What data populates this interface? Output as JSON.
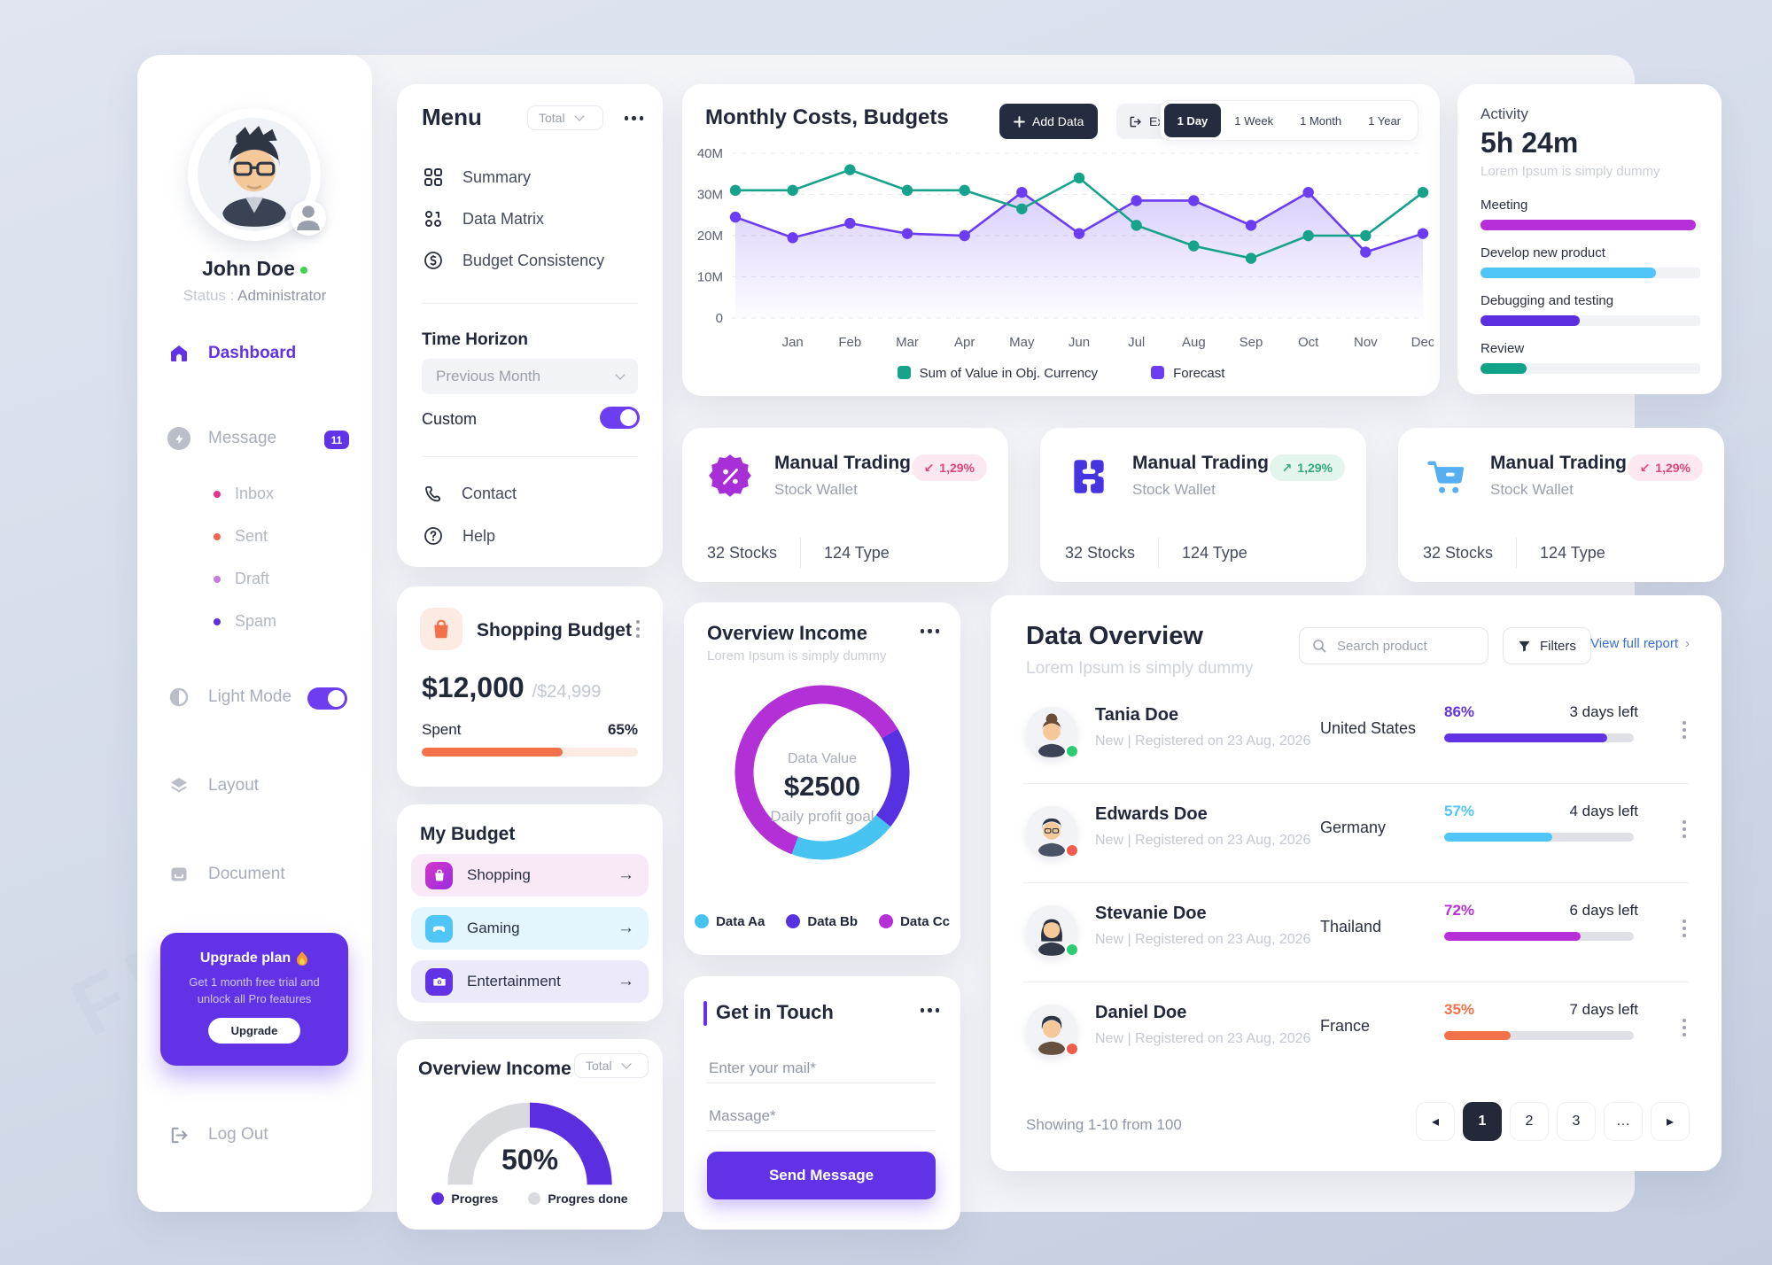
{
  "watermark": "FREEPIK",
  "sidebar": {
    "user": {
      "name": "John Doe",
      "status_label": "Status :",
      "status_value": "Administrator"
    },
    "dashboard": "Dashboard",
    "message": "Message",
    "message_badge": "11",
    "folders": [
      {
        "label": "Inbox",
        "color": "#e8338c"
      },
      {
        "label": "Sent",
        "color": "#f2624d"
      },
      {
        "label": "Draft",
        "color": "#c77be0"
      },
      {
        "label": "Spam",
        "color": "#5b2ee0"
      }
    ],
    "light_mode": "Light Mode",
    "layout": "Layout",
    "document": "Document",
    "upgrade": {
      "title": "Upgrade plan",
      "line1": "Get 1 month free trial and",
      "line2": "unlock all Pro features",
      "button": "Upgrade"
    },
    "logout": "Log Out"
  },
  "menu": {
    "title": "Menu",
    "scope_select": "Total",
    "items": [
      "Summary",
      "Data Matrix",
      "Budget Consistency"
    ],
    "time_horizon": "Time Horizon",
    "time_select": "Previous Month",
    "custom": "Custom",
    "contact": "Contact",
    "help": "Help"
  },
  "shopping_budget": {
    "title": "Shopping Budget",
    "amount": "$12,000",
    "limit": "/$24,999",
    "spent_label": "Spent",
    "percent_label": "65%",
    "percent": 65,
    "color": "#f2714b"
  },
  "my_budget": {
    "title": "My Budget",
    "items": [
      {
        "label": "Shopping"
      },
      {
        "label": "Gaming"
      },
      {
        "label": "Entertainment"
      }
    ]
  },
  "income_gauge": {
    "title": "Overview Income",
    "scope_select": "Total",
    "percent_label": "50%",
    "percent": 50,
    "legend": [
      {
        "label": "Progres",
        "color": "#5b2ee0"
      },
      {
        "label": "Progres done",
        "color": "#d8dade"
      }
    ]
  },
  "chart_card": {
    "title": "Monthly Costs, Budgets",
    "add_data": "Add Data",
    "export": "Export",
    "ranges": [
      "1 Day",
      "1 Week",
      "1 Month",
      "1 Year"
    ],
    "active_range": "1 Day"
  },
  "chart_data": {
    "type": "line",
    "title": "Monthly Costs, Budgets",
    "categories": [
      "",
      "Jan",
      "Feb",
      "Mar",
      "Apr",
      "May",
      "Jun",
      "Jul",
      "Aug",
      "Sep",
      "Oct",
      "Nov",
      "Dec"
    ],
    "ylim": [
      0,
      40
    ],
    "yticks": [
      "0",
      "10M",
      "20M",
      "30M",
      "40M"
    ],
    "grid": "horizontal-dashed",
    "legend_position": "bottom",
    "series": [
      {
        "name": "Sum of Value in Obj. Currency",
        "color": "#16a28b",
        "type": "line",
        "values": [
          31,
          31,
          36,
          31,
          31,
          26.5,
          34,
          22.5,
          17.5,
          14.5,
          20,
          20,
          30.5
        ]
      },
      {
        "name": "Forecast",
        "color": "#6b3df2",
        "type": "line-area",
        "values": [
          24.5,
          19.5,
          23,
          20.5,
          20,
          30.5,
          20.5,
          28.5,
          28.5,
          22.5,
          30.5,
          16,
          20.5
        ]
      }
    ]
  },
  "activity": {
    "title": "Activity",
    "duration": "5h 24m",
    "subtitle": "Lorem Ipsum is simply dummy",
    "bars": [
      {
        "label": "Meeting",
        "color": "#b62fd9",
        "percent": 98
      },
      {
        "label": "Develop new product",
        "color": "#4fc6f7",
        "percent": 80
      },
      {
        "label": "Debugging and testing",
        "color": "#5b2ee0",
        "percent": 45
      },
      {
        "label": "Review",
        "color": "#11a385",
        "percent": 21
      }
    ]
  },
  "trading_cards": [
    {
      "title": "Manual Trading",
      "subtitle": "Stock Wallet",
      "arrow": "↙",
      "change": "1,29%",
      "trend": "down",
      "stat1": "32 Stocks",
      "stat2": "124 Type"
    },
    {
      "title": "Manual Trading",
      "subtitle": "Stock Wallet",
      "arrow": "↗",
      "change": "1,29%",
      "trend": "up",
      "stat1": "32 Stocks",
      "stat2": "124 Type"
    },
    {
      "title": "Manual Trading",
      "subtitle": "Stock Wallet",
      "arrow": "↙",
      "change": "1,29%",
      "trend": "down",
      "stat1": "32 Stocks",
      "stat2": "124 Type"
    }
  ],
  "overview_income": {
    "title": "Overview Income",
    "subtitle": "Lorem Ipsum is simply dummy",
    "center_label": "Data Value",
    "center_value": "$2500",
    "center_sub": "Daily profit goal",
    "segments": [
      {
        "label": "Data Aa",
        "color": "#47c3f2",
        "value": 20
      },
      {
        "label": "Data Bb",
        "color": "#5531e2",
        "value": 19
      },
      {
        "label": "Data Cc",
        "color": "#b230d6",
        "value": 61
      }
    ]
  },
  "get_in_touch": {
    "title": "Get in Touch",
    "email_placeholder": "Enter your mail*",
    "message_placeholder": "Massage*",
    "send_button": "Send Message"
  },
  "data_overview": {
    "title": "Data Overview",
    "subtitle": "Lorem Ipsum is simply dummy",
    "search_placeholder": "Search product",
    "filters": "Filters",
    "view_report": "View full report",
    "rows": [
      {
        "name": "Tania Doe",
        "meta": "New | Registered on 23 Aug, 2026",
        "country": "United States",
        "percent_label": "86%",
        "percent": 86,
        "color": "#6233e4",
        "days": "3 days left",
        "presence": "online"
      },
      {
        "name": "Edwards Doe",
        "meta": "New | Registered on 23 Aug, 2026",
        "country": "Germany",
        "percent_label": "57%",
        "percent": 57,
        "color": "#4fc6f7",
        "days": "4 days left",
        "presence": "busy"
      },
      {
        "name": "Stevanie Doe",
        "meta": "New | Registered on 23 Aug, 2026",
        "country": "Thailand",
        "percent_label": "72%",
        "percent": 72,
        "color": "#b62fd9",
        "days": "6 days left",
        "presence": "online"
      },
      {
        "name": "Daniel Doe",
        "meta": "New | Registered on 23 Aug, 2026",
        "country": "France",
        "percent_label": "35%",
        "percent": 35,
        "color": "#f2714b",
        "days": "7 days left",
        "presence": "busy"
      }
    ],
    "showing": "Showing 1-10 from 100",
    "pages": [
      "1",
      "2",
      "3",
      "…"
    ],
    "active_page": "1"
  }
}
